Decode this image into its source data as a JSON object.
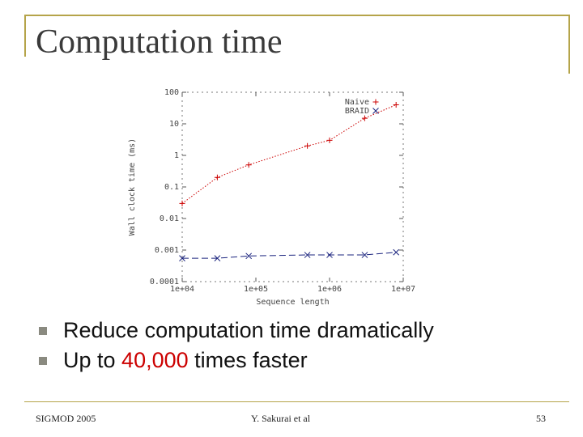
{
  "slide": {
    "title": "Computation time",
    "bullets": [
      {
        "before": "Reduce computation time dramatically",
        "highlight": "",
        "after": ""
      },
      {
        "before": "Up to ",
        "highlight": "40,000",
        "after": " times faster"
      }
    ],
    "footer": {
      "left": "SIGMOD 2005",
      "center": "Y. Sakurai et al",
      "right": "53"
    },
    "colors": {
      "frame": "#b5a44a",
      "highlight": "#cc0000",
      "naive": "#cc0000",
      "braid": "#1a237e"
    }
  },
  "chart_data": {
    "type": "line",
    "title": "",
    "xlabel": "Sequence length",
    "ylabel": "Wall clock time (ms)",
    "x_scale": "log",
    "y_scale": "log",
    "xlim": [
      10000,
      10000000
    ],
    "ylim": [
      0.0001,
      100
    ],
    "x_ticks": [
      10000,
      100000,
      1000000,
      10000000
    ],
    "x_tick_labels": [
      "1e+04",
      "1e+05",
      "1e+06",
      "1e+07"
    ],
    "y_ticks": [
      0.0001,
      0.001,
      0.01,
      0.1,
      1,
      10,
      100
    ],
    "y_tick_labels": [
      "0.0001",
      "0.001",
      "0.01",
      "0.1",
      "1",
      "10",
      "100"
    ],
    "legend_position": "top-right",
    "grid": false,
    "series": [
      {
        "name": "Naive",
        "marker": "+",
        "color": "#cc0000",
        "x": [
          10000,
          30000,
          80000,
          500000,
          1000000,
          3000000,
          8000000
        ],
        "y": [
          0.03,
          0.2,
          0.5,
          2,
          3,
          15,
          40
        ]
      },
      {
        "name": "BRAID",
        "marker": "x",
        "color": "#1a237e",
        "x": [
          10000,
          30000,
          80000,
          500000,
          1000000,
          3000000,
          8000000
        ],
        "y": [
          0.00055,
          0.00055,
          0.00065,
          0.0007,
          0.0007,
          0.0007,
          0.00085
        ]
      }
    ]
  }
}
